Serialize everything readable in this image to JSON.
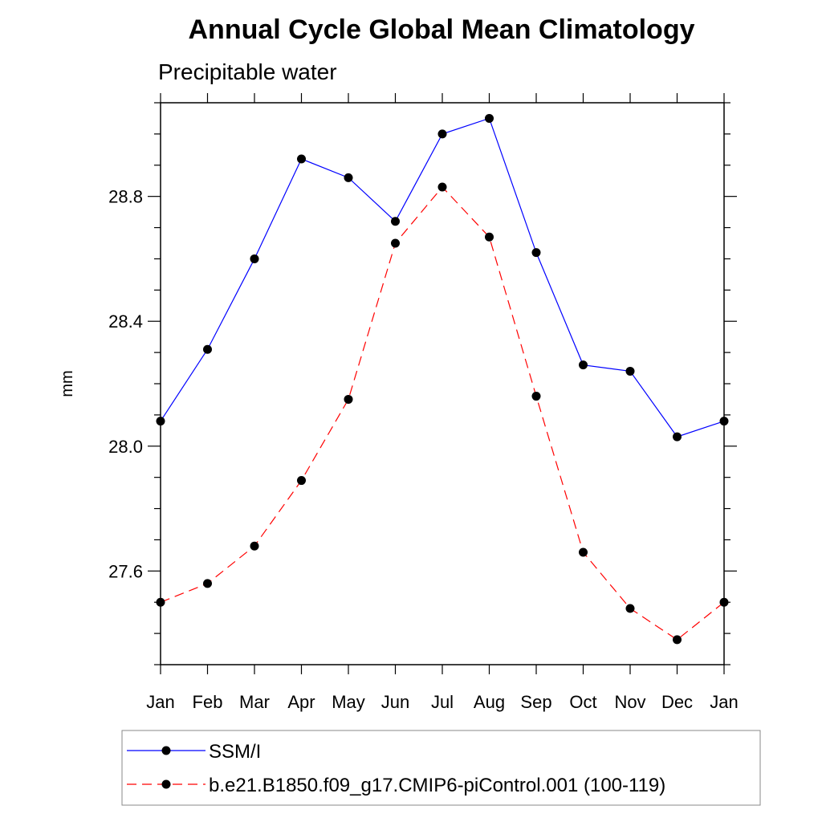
{
  "chart_data": {
    "type": "line",
    "title": "Annual Cycle Global Mean Climatology",
    "subtitle": "Precipitable water",
    "xlabel": "",
    "ylabel": "mm",
    "categories": [
      "Jan",
      "Feb",
      "Mar",
      "Apr",
      "May",
      "Jun",
      "Jul",
      "Aug",
      "Sep",
      "Oct",
      "Nov",
      "Dec",
      "Jan"
    ],
    "ylim": [
      27.3,
      29.1
    ],
    "yticks": [
      27.6,
      28.0,
      28.4,
      28.8
    ],
    "ytick_labels": [
      "27.6",
      "28.0",
      "28.4",
      "28.8"
    ],
    "grid": false,
    "legend_position": "bottom",
    "series": [
      {
        "name": "SSM/I",
        "color": "#0000ff",
        "dash": "solid",
        "values": [
          28.08,
          28.31,
          28.6,
          28.92,
          28.86,
          28.72,
          29.0,
          29.05,
          28.62,
          28.26,
          28.24,
          28.03,
          28.08
        ]
      },
      {
        "name": "b.e21.B1850.f09_g17.CMIP6-piControl.001 (100-119)",
        "color": "#ff0000",
        "dash": "dashed",
        "values": [
          27.5,
          27.56,
          27.68,
          27.89,
          28.15,
          28.65,
          28.83,
          28.67,
          28.16,
          27.66,
          27.48,
          27.38,
          27.5
        ]
      }
    ]
  }
}
